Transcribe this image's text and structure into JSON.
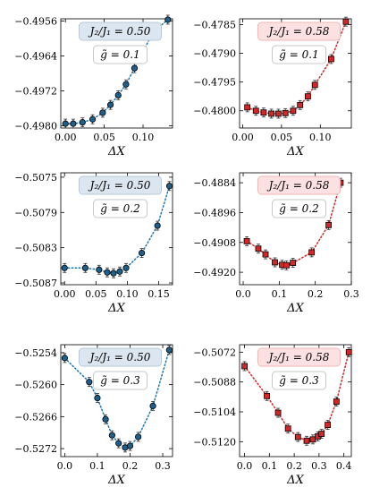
{
  "colors": {
    "blue_line": "#1f77b4",
    "blue_marker": "#1f5f8b",
    "red_line": "#d62728",
    "red_marker": "#d62728",
    "blue_box_bg": "#dce6f0",
    "blue_box_edge": "#b9c9da",
    "red_box_bg": "#fbe1e1",
    "red_box_edge": "#f0b9b9",
    "g_box_bg": "#ffffff",
    "g_box_edge": "#c8c8c8"
  },
  "chart_data": [
    {
      "type": "scatter",
      "color_key": "blue",
      "ratio_label": "J₂/J₁ = 0.50",
      "g_label": "g̃ = 0.1",
      "xlabel": "ΔX",
      "xlim": [
        -0.006,
        0.138
      ],
      "ylim": [
        -0.49805,
        -0.49555
      ],
      "xticks": [
        0.0,
        0.05,
        0.1
      ],
      "xtick_labels": [
        "0.00",
        "0.05",
        "0.10"
      ],
      "yticks": [
        -0.498,
        -0.4972,
        -0.4964,
        -0.4956
      ],
      "ytick_labels": [
        "−0.4980",
        "−0.4972",
        "−0.4964",
        "−0.4956"
      ],
      "x": [
        0.0,
        0.01,
        0.022,
        0.035,
        0.048,
        0.058,
        0.068,
        0.078,
        0.089,
        0.113,
        0.132
      ],
      "y": [
        -0.49795,
        -0.49795,
        -0.49792,
        -0.49785,
        -0.4977,
        -0.49752,
        -0.4973,
        -0.49705,
        -0.49668,
        -0.49585,
        -0.49557
      ]
    },
    {
      "type": "scatter",
      "color_key": "red",
      "ratio_label": "J₂/J₁ = 0.58",
      "g_label": "g̃ = 0.1",
      "xlabel": "ΔX",
      "xlim": [
        -0.004,
        0.14
      ],
      "ylim": [
        -0.4803,
        -0.4784
      ],
      "xticks": [
        0.0,
        0.05,
        0.1
      ],
      "xtick_labels": [
        "0.00",
        "0.05",
        "0.10"
      ],
      "yticks": [
        -0.48,
        -0.4795,
        -0.479,
        -0.4785
      ],
      "ytick_labels": [
        "−0.4800",
        "−0.4795",
        "−0.4790",
        "−0.4785"
      ],
      "x": [
        0.006,
        0.017,
        0.027,
        0.037,
        0.046,
        0.055,
        0.065,
        0.074,
        0.084,
        0.093,
        0.114,
        0.133
      ],
      "y": [
        -0.47994,
        -0.48,
        -0.48003,
        -0.48005,
        -0.48005,
        -0.48004,
        -0.48,
        -0.4799,
        -0.47975,
        -0.47955,
        -0.4791,
        -0.47845
      ]
    },
    {
      "type": "scatter",
      "color_key": "blue",
      "ratio_label": "J₂/J₁ = 0.50",
      "g_label": "g̃ = 0.2",
      "xlabel": "ΔX",
      "xlim": [
        -0.006,
        0.172
      ],
      "ylim": [
        -0.50872,
        -0.50745
      ],
      "xticks": [
        0.0,
        0.05,
        0.1,
        0.15
      ],
      "xtick_labels": [
        "0.00",
        "0.05",
        "0.10",
        "0.15"
      ],
      "yticks": [
        -0.5087,
        -0.5083,
        -0.5079,
        -0.5075
      ],
      "ytick_labels": [
        "−0.5087",
        "−0.5083",
        "−0.5079",
        "−0.5075"
      ],
      "x": [
        0.0,
        0.033,
        0.055,
        0.068,
        0.078,
        0.088,
        0.098,
        0.123,
        0.148,
        0.167
      ],
      "y": [
        -0.50853,
        -0.50853,
        -0.50855,
        -0.50858,
        -0.50859,
        -0.50857,
        -0.50853,
        -0.50836,
        -0.50805,
        -0.5076
      ]
    },
    {
      "type": "scatter",
      "color_key": "red",
      "ratio_label": "J₂/J₁ = 0.58",
      "g_label": "g̃ = 0.2",
      "xlabel": "ΔX",
      "xlim": [
        -0.01,
        0.3
      ],
      "ylim": [
        -0.4925,
        -0.488
      ],
      "xticks": [
        0.0,
        0.1,
        0.2,
        0.3
      ],
      "xtick_labels": [
        "0.0",
        "0.1",
        "0.2",
        "0.3"
      ],
      "yticks": [
        -0.492,
        -0.4908,
        -0.4896,
        -0.4884
      ],
      "ytick_labels": [
        "−0.4920",
        "−0.4908",
        "−0.4896",
        "−0.4884"
      ],
      "x": [
        0.01,
        0.042,
        0.062,
        0.088,
        0.108,
        0.12,
        0.138,
        0.19,
        0.237,
        0.27
      ],
      "y": [
        -0.49075,
        -0.49105,
        -0.49128,
        -0.4916,
        -0.4917,
        -0.49172,
        -0.49162,
        -0.4912,
        -0.4901,
        -0.4884
      ]
    },
    {
      "type": "scatter",
      "color_key": "blue",
      "ratio_label": "J₂/J₁ = 0.50",
      "g_label": "g̃ = 0.3",
      "xlabel": "ΔX",
      "xlim": [
        -0.012,
        0.33
      ],
      "ylim": [
        -0.52735,
        -0.52525
      ],
      "xticks": [
        0.0,
        0.1,
        0.2,
        0.3
      ],
      "xtick_labels": [
        "0.0",
        "0.1",
        "0.2",
        "0.3"
      ],
      "yticks": [
        -0.5272,
        -0.5266,
        -0.526,
        -0.5254
      ],
      "ytick_labels": [
        "−0.5272",
        "−0.5266",
        "−0.5260",
        "−0.5254"
      ],
      "x": [
        0.0,
        0.075,
        0.1,
        0.125,
        0.145,
        0.165,
        0.185,
        0.2,
        0.225,
        0.27,
        0.32
      ],
      "y": [
        -0.5255,
        -0.52595,
        -0.52625,
        -0.52665,
        -0.52695,
        -0.5271,
        -0.52718,
        -0.52715,
        -0.52698,
        -0.5264,
        -0.52535
      ]
    },
    {
      "type": "scatter",
      "color_key": "red",
      "ratio_label": "J₂/J₁ = 0.58",
      "g_label": "g̃ = 0.3",
      "xlabel": "ΔX",
      "xlim": [
        -0.02,
        0.43
      ],
      "ylim": [
        -0.5128,
        -0.5068
      ],
      "xticks": [
        0.0,
        0.1,
        0.2,
        0.3,
        0.4
      ],
      "xtick_labels": [
        "0.0",
        "0.1",
        "0.2",
        "0.3",
        "0.4"
      ],
      "yticks": [
        -0.512,
        -0.5104,
        -0.5088,
        -0.5072
      ],
      "ytick_labels": [
        "−0.5120",
        "−0.5104",
        "−0.5088",
        "−0.5072"
      ],
      "x": [
        0.0,
        0.09,
        0.135,
        0.175,
        0.215,
        0.25,
        0.275,
        0.295,
        0.31,
        0.335,
        0.37,
        0.42
      ],
      "y": [
        -0.50795,
        -0.50955,
        -0.51045,
        -0.5113,
        -0.51175,
        -0.51195,
        -0.51188,
        -0.51172,
        -0.51158,
        -0.5111,
        -0.50985,
        -0.5072
      ]
    }
  ]
}
